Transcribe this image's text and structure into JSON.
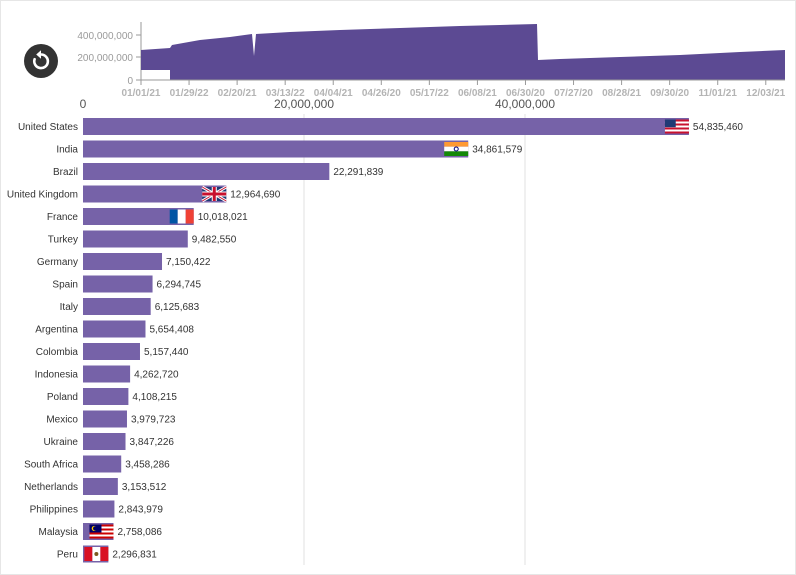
{
  "controls": {
    "replay_icon": "replay-icon"
  },
  "overview": {
    "y_ticks": [
      "400,000,000",
      "200,000,000",
      "0"
    ],
    "x_ticks": [
      "01/01/21",
      "01/29/22",
      "02/20/21",
      "03/13/22",
      "04/04/21",
      "04/26/20",
      "05/17/22",
      "06/08/21",
      "06/30/20",
      "07/27/20",
      "08/28/21",
      "09/30/20",
      "11/01/21",
      "12/03/21"
    ],
    "area_color": "#5c4a93"
  },
  "chart_data": {
    "type": "bar",
    "orientation": "horizontal",
    "title": "",
    "xlabel": "",
    "ylabel": "",
    "xlim": [
      0,
      60000000
    ],
    "x_ticks": [
      "0",
      "20,000,000",
      "40,000,000"
    ],
    "grid": true,
    "bar_color": "#7662a8",
    "categories": [
      "United States",
      "India",
      "Brazil",
      "United Kingdom",
      "France",
      "Turkey",
      "Germany",
      "Spain",
      "Italy",
      "Argentina",
      "Colombia",
      "Indonesia",
      "Poland",
      "Mexico",
      "Ukraine",
      "South Africa",
      "Netherlands",
      "Philippines",
      "Malaysia",
      "Peru"
    ],
    "values": [
      54835460,
      34861579,
      22291839,
      12964690,
      10018021,
      9482550,
      7150422,
      6294745,
      6125683,
      5654408,
      5157440,
      4262720,
      4108215,
      3979723,
      3847226,
      3458286,
      3153512,
      2843979,
      2758086,
      2296831
    ],
    "value_labels": [
      "54,835,460",
      "34,861,579",
      "22,291,839",
      "12,964,690",
      "10,018,021",
      "9,482,550",
      "7,150,422",
      "6,294,745",
      "6,125,683",
      "5,654,408",
      "5,157,440",
      "4,262,720",
      "4,108,215",
      "3,979,723",
      "3,847,226",
      "3,458,286",
      "3,153,512",
      "2,843,979",
      "2,758,086",
      "2,296,831"
    ],
    "flags": {
      "United States": "us-flag-icon",
      "India": "india-flag-icon",
      "United Kingdom": "uk-flag-icon",
      "France": "france-flag-icon",
      "Malaysia": "malaysia-flag-icon",
      "Peru": "peru-flag-icon"
    }
  }
}
